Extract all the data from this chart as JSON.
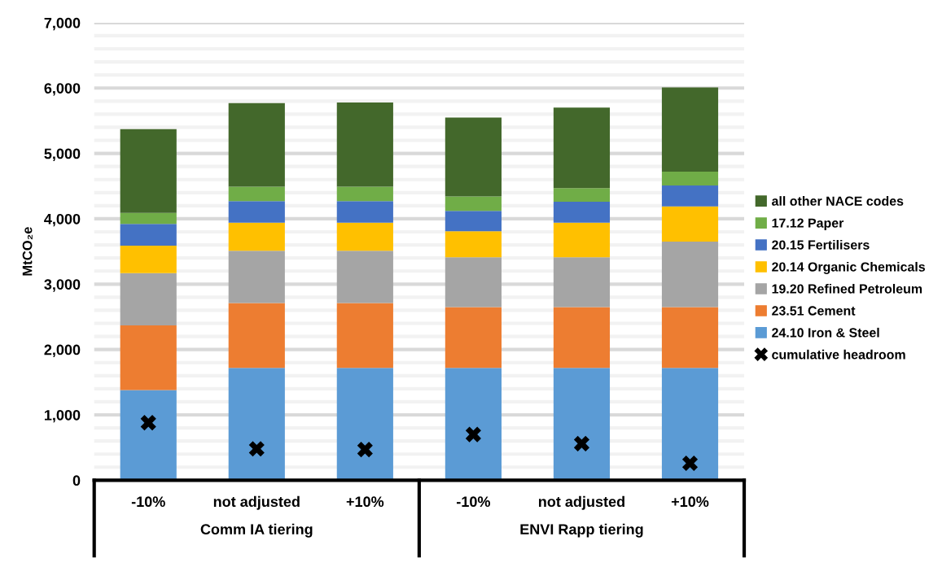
{
  "chart_data": {
    "type": "bar",
    "stacked": true,
    "ylabel": "MtCO₂e",
    "categories": [
      "-10%",
      "not adjusted",
      "+10%",
      "-10%",
      "not adjusted",
      "+10%"
    ],
    "annotations": [
      "Comm IA tiering",
      "ENVI Rapp tiering"
    ],
    "ylim": [
      0,
      7000
    ],
    "yticks": [
      0,
      {
        "value": 200,
        "label": null
      },
      {
        "value": 400,
        "label": null
      },
      {
        "value": 600,
        "label": null
      },
      {
        "value": 800,
        "label": null
      },
      {
        "value": 1000,
        "label": "1,000"
      },
      {
        "value": 1200,
        "label": null
      },
      {
        "value": 1400,
        "label": null
      },
      {
        "value": 1600,
        "label": null
      },
      {
        "value": 1800,
        "label": null
      },
      {
        "value": 2000,
        "label": "2,000"
      },
      {
        "value": 2200,
        "label": null
      },
      {
        "value": 2400,
        "label": null
      },
      {
        "value": 2600,
        "label": null
      },
      {
        "value": 2800,
        "label": null
      },
      {
        "value": 3000,
        "label": "3,000"
      },
      {
        "value": 3200,
        "label": null
      },
      {
        "value": 3400,
        "label": null
      },
      {
        "value": 3600,
        "label": null
      },
      {
        "value": 3800,
        "label": null
      },
      {
        "value": 4000,
        "label": "4,000"
      },
      {
        "value": 4200,
        "label": null
      },
      {
        "value": 4400,
        "label": null
      },
      {
        "value": 4600,
        "label": null
      },
      {
        "value": 4800,
        "label": null
      },
      {
        "value": 5000,
        "label": "5,000"
      },
      {
        "value": 5200,
        "label": null
      },
      {
        "value": 5400,
        "label": null
      },
      {
        "value": 5600,
        "label": null
      },
      {
        "value": 5800,
        "label": null
      },
      {
        "value": 6000,
        "label": "6,000"
      },
      {
        "value": 6200,
        "label": null
      },
      {
        "value": 6400,
        "label": null
      },
      {
        "value": 6600,
        "label": null
      },
      {
        "value": 6800,
        "label": null
      },
      {
        "value": 7000,
        "label": "7,000"
      }
    ],
    "grid": "y",
    "legend": "right",
    "series": [
      {
        "name": "24.10 Iron & Steel",
        "color": "#5b9bd5",
        "values": [
          1380,
          1720,
          1720,
          1720,
          1720,
          1720
        ]
      },
      {
        "name": "23.51 Cement",
        "color": "#ed7d31",
        "values": [
          990,
          990,
          990,
          930,
          930,
          930
        ]
      },
      {
        "name": "19.20 Refined Petroleum",
        "color": "#a5a5a5",
        "values": [
          800,
          800,
          800,
          760,
          760,
          1000
        ]
      },
      {
        "name": "20.14 Organic Chemicals",
        "color": "#ffc000",
        "values": [
          420,
          430,
          430,
          400,
          530,
          540
        ]
      },
      {
        "name": "20.15 Fertilisers",
        "color": "#4472c4",
        "values": [
          330,
          330,
          330,
          310,
          320,
          320
        ]
      },
      {
        "name": "17.12 Paper",
        "color": "#70ad47",
        "values": [
          170,
          220,
          220,
          220,
          210,
          210
        ]
      },
      {
        "name": "all other NACE codes",
        "color": "#43682b",
        "values": [
          1280,
          1280,
          1290,
          1210,
          1230,
          1290
        ]
      },
      {
        "name": "cumulative headroom",
        "type": "scatter",
        "marker": "cross",
        "color": "#000000",
        "values": [
          880,
          480,
          470,
          700,
          560,
          260
        ]
      }
    ]
  }
}
